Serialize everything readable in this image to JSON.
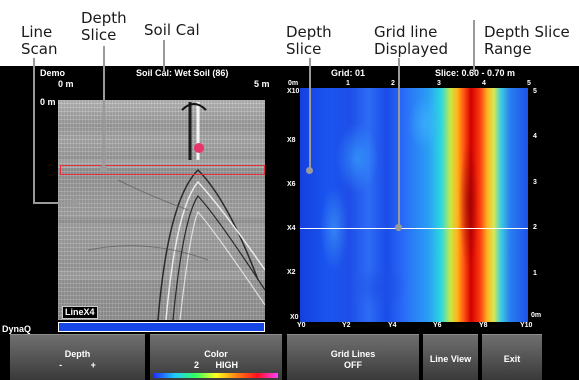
{
  "annotations": {
    "line_scan": [
      "Line",
      "Scan"
    ],
    "depth_slice_left": [
      "Depth",
      "Slice"
    ],
    "soil_cal": "Soil Cal",
    "depth_slice_right": [
      "Depth",
      "Slice"
    ],
    "grid_line": [
      "Grid line",
      "Displayed"
    ],
    "depth_slice_range": [
      "Depth Slice",
      "Range"
    ]
  },
  "header": {
    "mode": "Demo",
    "soil_cal": "Soil Cal: Wet Soil (86)",
    "grid": "Grid: 01",
    "slice": "Slice: 0.60 - 0.70 m"
  },
  "line_scan": {
    "dist_start": "0 m",
    "dist_end": "5 m",
    "depth_start": "0 m",
    "line_label": "LineX4"
  },
  "brand": "DynaQ",
  "depth_slice": {
    "top_labels": [
      "0m",
      "1",
      "2",
      "3",
      "4",
      "5"
    ],
    "left_labels": [
      "X10",
      "X8",
      "X6",
      "X4",
      "X2",
      "X0"
    ],
    "right_labels": [
      "5",
      "4",
      "3",
      "2",
      "1",
      "0m"
    ],
    "bottom_labels": [
      "Y0",
      "Y2",
      "Y4",
      "Y6",
      "Y8",
      "Y10"
    ]
  },
  "softkeys": {
    "depth": {
      "title": "Depth",
      "minus": "-",
      "plus": "+"
    },
    "color": {
      "title": "Color",
      "value_num": "2",
      "value_text": "HIGH"
    },
    "grid_lines": {
      "title": "Grid Lines",
      "value": "OFF"
    },
    "line_view": "Line View",
    "exit": "Exit"
  }
}
